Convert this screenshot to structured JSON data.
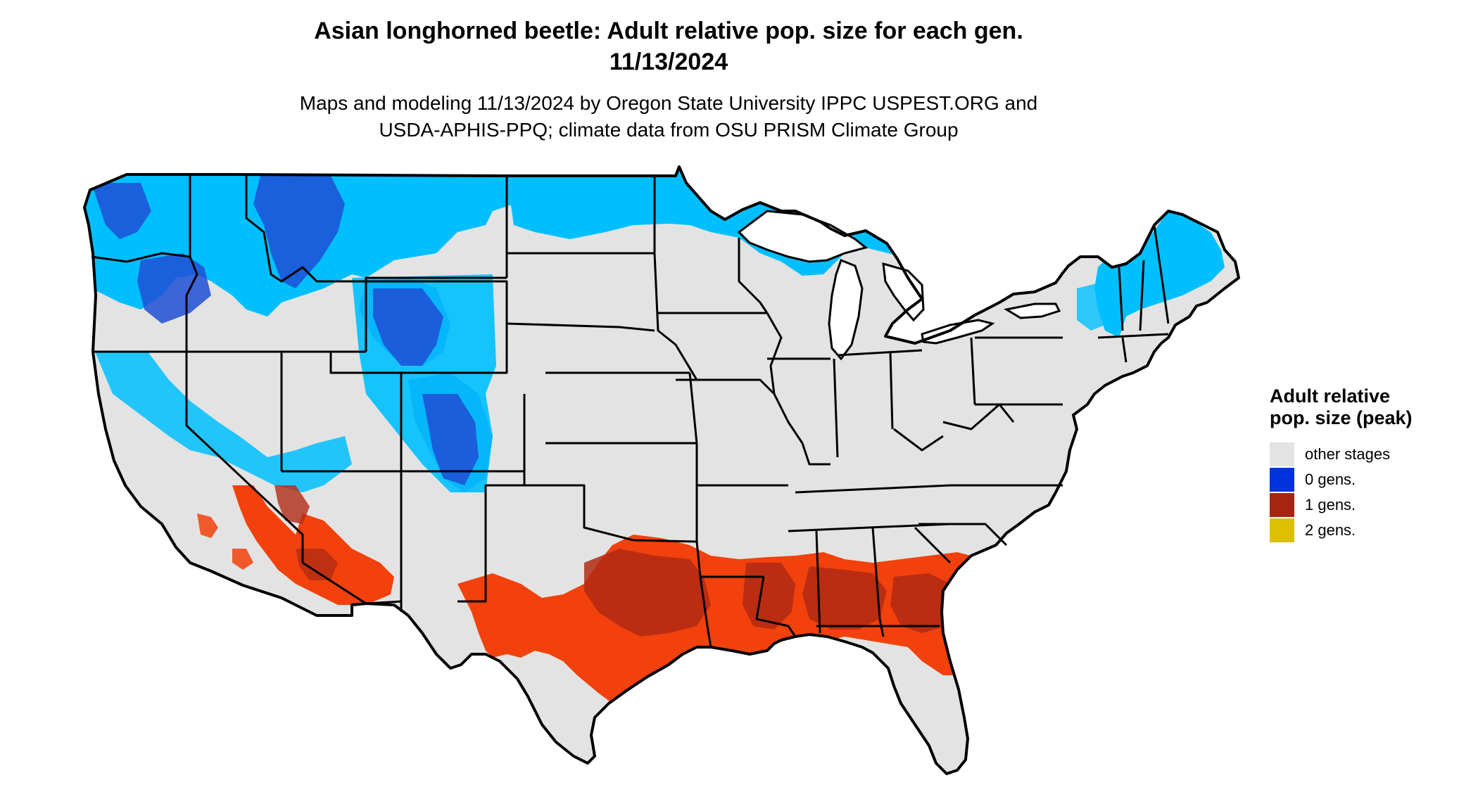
{
  "title": {
    "line1": "Asian longhorned beetle: Adult relative pop. size for each gen.",
    "line2": "11/13/2024"
  },
  "subtitle": {
    "line1": "Maps and modeling 11/13/2024 by Oregon State University IPPC USPEST.ORG and",
    "line2": "USDA-APHIS-PPQ; climate data from OSU PRISM Climate Group"
  },
  "legend": {
    "title": "Adult relative pop. size (peak)",
    "items": [
      {
        "label": "other stages",
        "color": "#e3e3e3"
      },
      {
        "label": "0 gens.",
        "color": "#0033dd"
      },
      {
        "label": "1 gens.",
        "color": "#a52512"
      },
      {
        "label": "2 gens.",
        "color": "#dcc000"
      }
    ]
  },
  "map_colors": {
    "land": "#e3e3e3",
    "zero_gens_light": "#00bfff",
    "zero_gens_dark": "#1f4fd6",
    "one_gens_bright": "#f2410c",
    "one_gens_dark": "#b22a14",
    "borders": "#000000",
    "water": "#ffffff"
  }
}
